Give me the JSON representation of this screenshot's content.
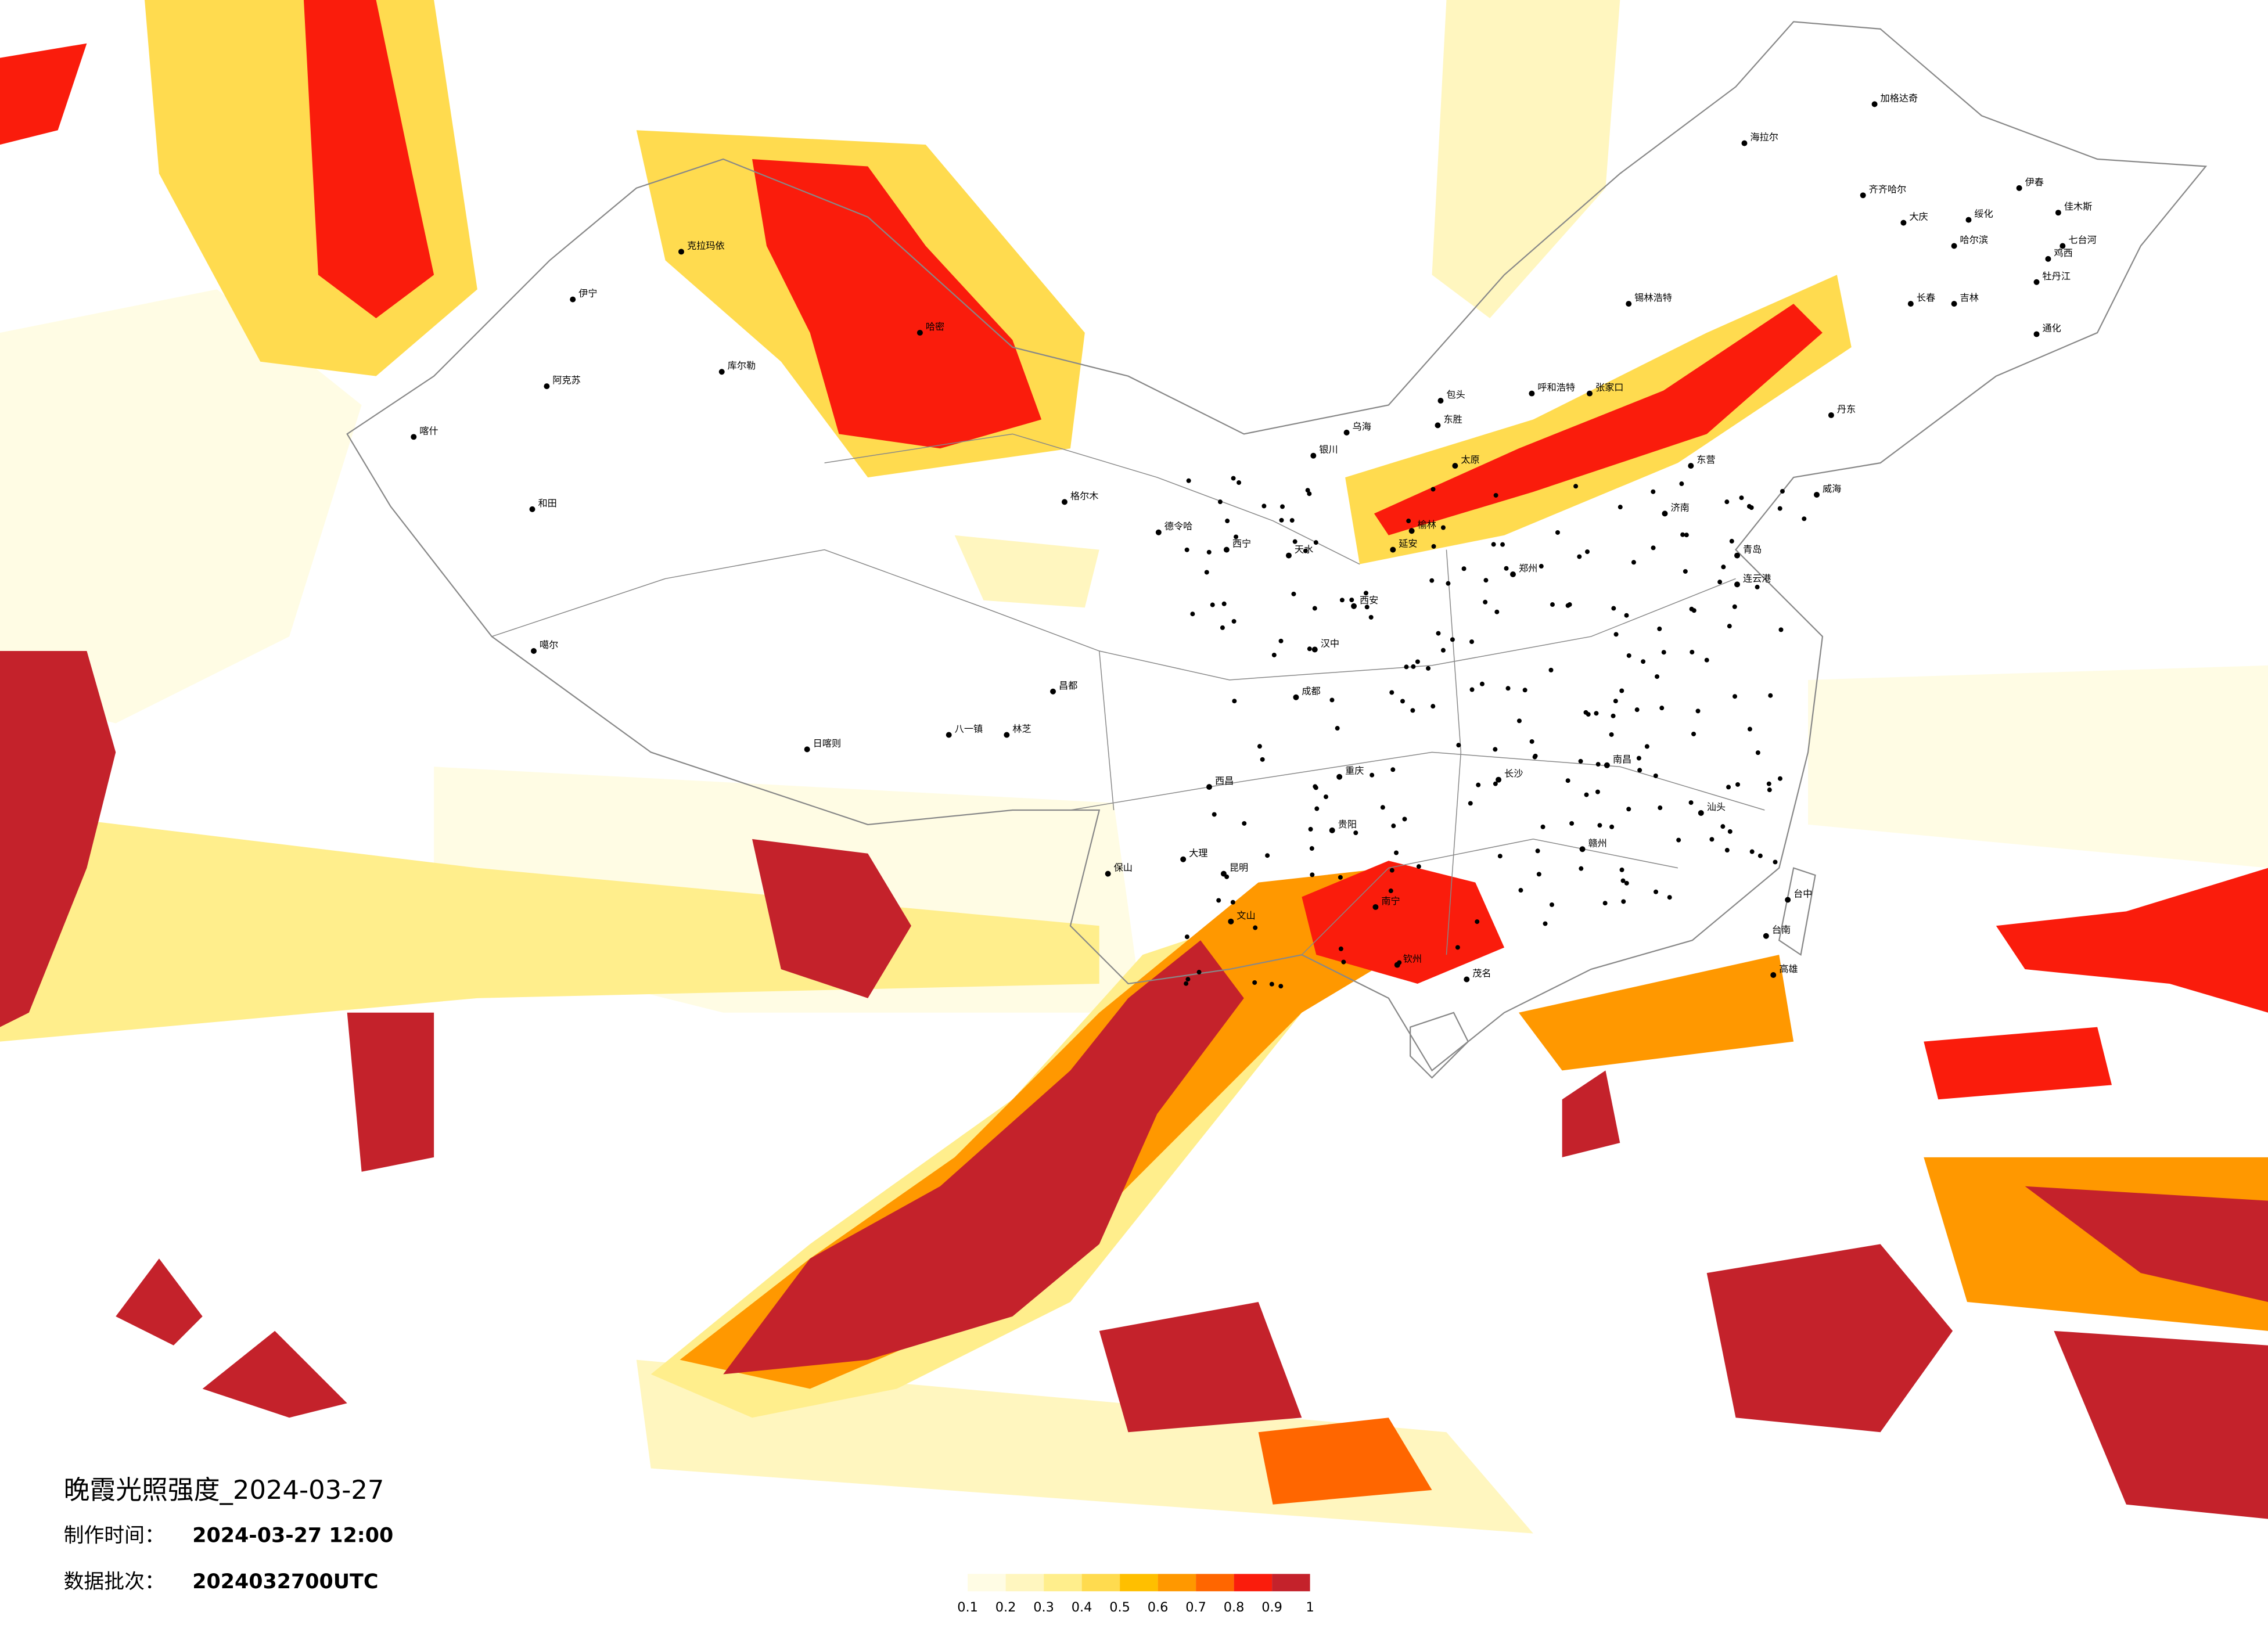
{
  "header": {
    "title": "晚霞光照强度_2024-03-27",
    "made_label": "制作时间：",
    "made_time": "2024-03-27 12:00",
    "batch_label": "数据批次：",
    "batch": "2024032700UTC"
  },
  "legend": {
    "labels": [
      0.1,
      0.2,
      0.3,
      0.4,
      0.5,
      0.6,
      0.7,
      0.8,
      0.9,
      1
    ],
    "colors": [
      "#fffce4",
      "#fff6bf",
      "#ffee8c",
      "#ffdb4f",
      "#ffbf00",
      "#ff9800",
      "#ff6600",
      "#fa1c0c",
      "#c4222b"
    ]
  },
  "cities": [
    "海拉尔",
    "加格达奇",
    "齐齐哈尔",
    "大庆",
    "绥化",
    "哈尔滨",
    "伊春",
    "佳木斯",
    "七台河",
    "鸡西",
    "牡丹江",
    "长春",
    "吉林",
    "通化",
    "锡林浩特",
    "张家口",
    "呼和浩特",
    "包头",
    "东胜",
    "乌海",
    "银川",
    "克拉玛依",
    "伊宁",
    "阿克苏",
    "喀什",
    "和田",
    "库尔勒",
    "哈密",
    "格尔木",
    "德令哈",
    "西宁",
    "噶尔",
    "日喀则",
    "林芝",
    "八一镇",
    "昌都",
    "西昌",
    "大理",
    "保山",
    "昆明",
    "文山",
    "南宁",
    "钦州",
    "茂名",
    "汕头",
    "台中",
    "台南",
    "高雄",
    "连云港",
    "济南",
    "郑州",
    "西安",
    "成都",
    "重庆",
    "贵阳",
    "长沙",
    "南昌",
    "赣州",
    "汉中",
    "天水",
    "延安",
    "榆林",
    "太原",
    "威海",
    "青岛",
    "丹东",
    "东营"
  ]
}
